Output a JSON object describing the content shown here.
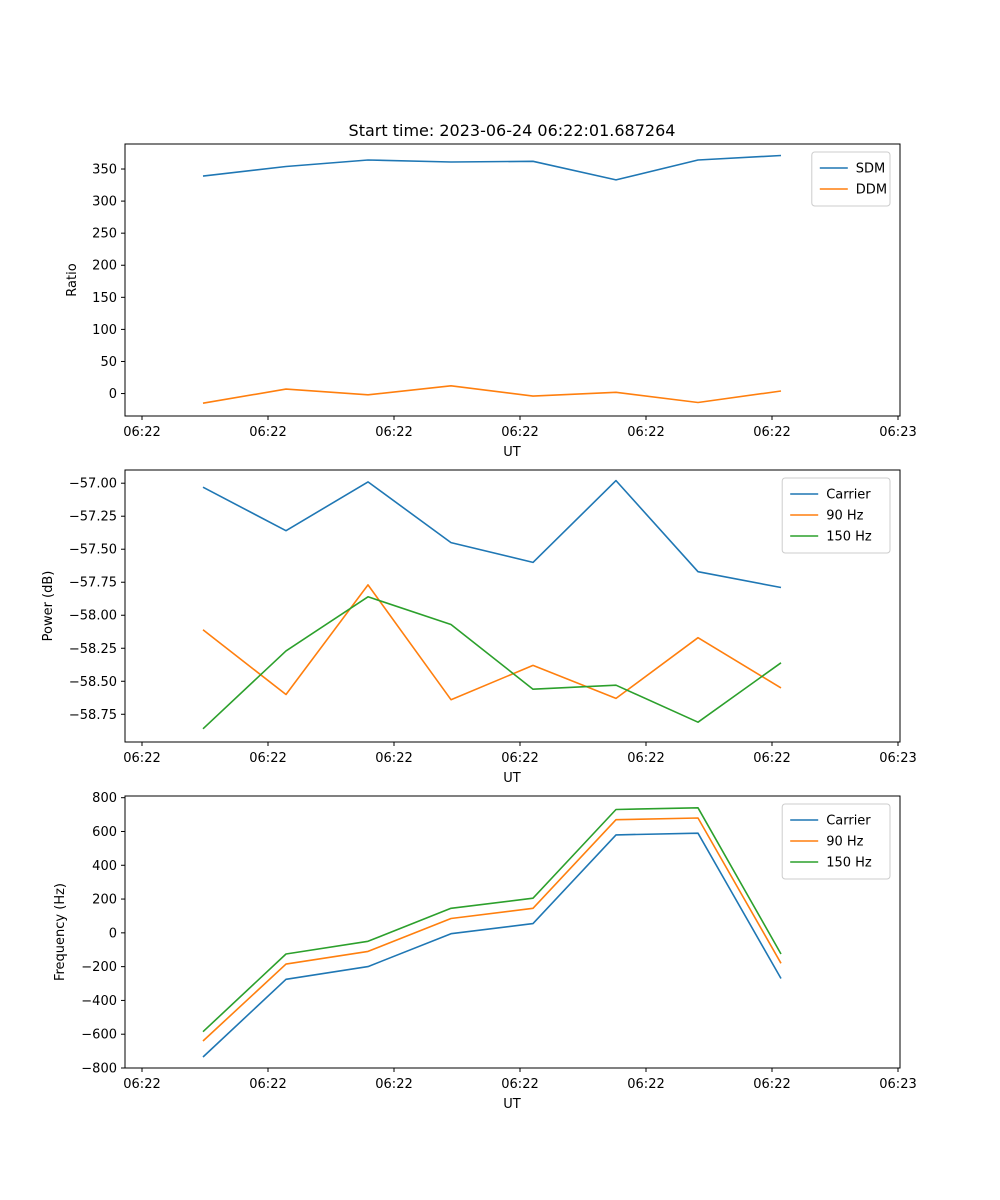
{
  "title": "Start time: 2023-06-24 06:22:01.687264",
  "chart_data": [
    {
      "type": "line",
      "xlabel": "UT",
      "ylabel": "Ratio",
      "x_tick_labels": [
        "06:22",
        "06:22",
        "06:22",
        "06:22",
        "06:22",
        "06:22",
        "06:23"
      ],
      "y_ticks": [
        0,
        50,
        100,
        150,
        200,
        250,
        300,
        350
      ],
      "y_tick_labels": [
        "0",
        "50",
        "100",
        "150",
        "200",
        "250",
        "300",
        "350"
      ],
      "ylim": [
        -35,
        389
      ],
      "legend_loc": "upper right",
      "series": [
        {
          "name": "SDM",
          "color": "#1f77b4",
          "values": [
            339,
            354,
            364,
            361,
            362,
            333,
            364,
            371
          ]
        },
        {
          "name": "DDM",
          "color": "#ff7f0e",
          "values": [
            -15,
            7,
            -2,
            12,
            -4,
            2,
            -14,
            4
          ]
        }
      ]
    },
    {
      "type": "line",
      "xlabel": "UT",
      "ylabel": "Power (dB)",
      "x_tick_labels": [
        "06:22",
        "06:22",
        "06:22",
        "06:22",
        "06:22",
        "06:22",
        "06:23"
      ],
      "y_ticks": [
        -58.75,
        -58.5,
        -58.25,
        -58.0,
        -57.75,
        -57.5,
        -57.25,
        -57.0
      ],
      "y_tick_labels": [
        "−58.75",
        "−58.50",
        "−58.25",
        "−58.00",
        "−57.75",
        "−57.50",
        "−57.25",
        "−57.00"
      ],
      "ylim": [
        -58.96,
        -56.9
      ],
      "legend_loc": "upper right",
      "series": [
        {
          "name": "Carrier",
          "color": "#1f77b4",
          "values": [
            -57.03,
            -57.36,
            -56.99,
            -57.45,
            -57.6,
            -56.98,
            -57.67,
            -57.79
          ]
        },
        {
          "name": "90 Hz",
          "color": "#ff7f0e",
          "values": [
            -58.11,
            -58.6,
            -57.77,
            -58.64,
            -58.38,
            -58.63,
            -58.17,
            -58.55
          ]
        },
        {
          "name": "150 Hz",
          "color": "#2ca02c",
          "values": [
            -58.86,
            -58.27,
            -57.86,
            -58.07,
            -58.56,
            -58.53,
            -58.81,
            -58.36
          ]
        }
      ]
    },
    {
      "type": "line",
      "xlabel": "UT",
      "ylabel": "Frequency (Hz)",
      "x_tick_labels": [
        "06:22",
        "06:22",
        "06:22",
        "06:22",
        "06:22",
        "06:22",
        "06:23"
      ],
      "y_ticks": [
        -800,
        -600,
        -400,
        -200,
        0,
        200,
        400,
        600,
        800
      ],
      "y_tick_labels": [
        "−800",
        "−600",
        "−400",
        "−200",
        "0",
        "200",
        "400",
        "600",
        "800"
      ],
      "ylim": [
        -800,
        810
      ],
      "legend_loc": "upper right",
      "series": [
        {
          "name": "Carrier",
          "color": "#1f77b4",
          "values": [
            -735,
            -275,
            -200,
            -5,
            55,
            580,
            590,
            -270
          ]
        },
        {
          "name": "90 Hz",
          "color": "#ff7f0e",
          "values": [
            -640,
            -185,
            -110,
            85,
            145,
            670,
            680,
            -180
          ]
        },
        {
          "name": "150 Hz",
          "color": "#2ca02c",
          "values": [
            -585,
            -125,
            -50,
            145,
            205,
            730,
            740,
            -125
          ]
        }
      ]
    }
  ]
}
